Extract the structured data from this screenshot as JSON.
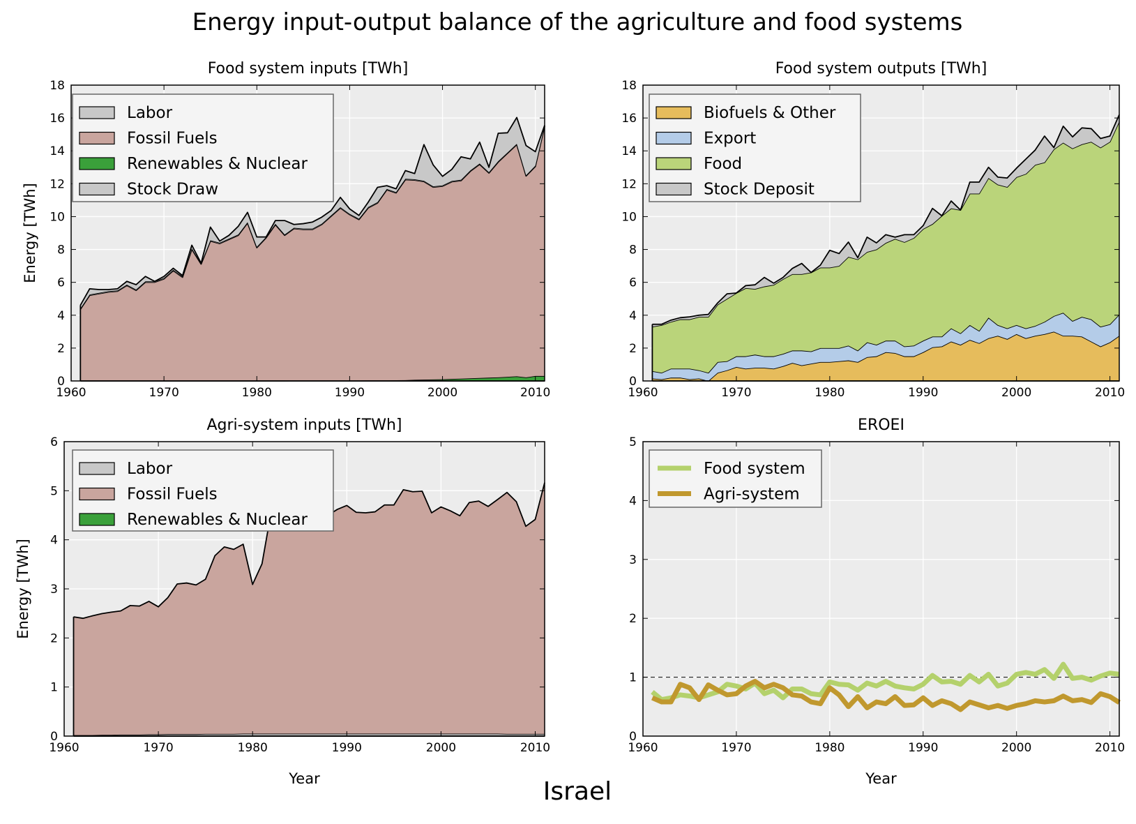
{
  "figure": {
    "title": "Energy input-output balance of the agriculture and food systems",
    "country": "Israel"
  },
  "chart_data": [
    {
      "id": "food-inputs",
      "type": "area",
      "title": "Food system inputs [TWh]",
      "ylabel": "Energy [TWh]",
      "xlabel": "",
      "xlim": [
        1960,
        2011
      ],
      "ylim": [
        0,
        18
      ],
      "xticks": [
        1960,
        1970,
        1980,
        1990,
        2000,
        2010
      ],
      "yticks": [
        0,
        2,
        4,
        6,
        8,
        10,
        12,
        14,
        16,
        18
      ],
      "grid": true,
      "legend_position": "upper-left",
      "x": [
        1961,
        1962,
        1963,
        1964,
        1965,
        1966,
        1967,
        1968,
        1969,
        1970,
        1971,
        1972,
        1973,
        1974,
        1975,
        1976,
        1977,
        1978,
        1979,
        1980,
        1981,
        1982,
        1983,
        1984,
        1985,
        1986,
        1987,
        1988,
        1989,
        1990,
        1991,
        1992,
        1993,
        1994,
        1995,
        1996,
        1997,
        1998,
        1999,
        2000,
        2001,
        2002,
        2003,
        2004,
        2005,
        2006,
        2007,
        2008,
        2009,
        2010,
        2011
      ],
      "stack_order": [
        "Renewables & Nuclear",
        "Fossil Fuels",
        "Labor",
        "Stock Draw"
      ],
      "series": [
        {
          "name": "Labor",
          "color": "#c8c8c8",
          "values": [
            0.05,
            0.05,
            0.05,
            0.05,
            0.05,
            0.05,
            0.05,
            0.05,
            0.05,
            0.05,
            0.05,
            0.05,
            0.05,
            0.05,
            0.05,
            0.05,
            0.05,
            0.05,
            0.05,
            0.05,
            0.05,
            0.05,
            0.05,
            0.05,
            0.05,
            0.05,
            0.05,
            0.05,
            0.05,
            0.05,
            0.05,
            0.05,
            0.05,
            0.05,
            0.05,
            0.05,
            0.05,
            0.05,
            0.05,
            0.05,
            0.05,
            0.05,
            0.05,
            0.05,
            0.05,
            0.05,
            0.05,
            0.05,
            0.05,
            0.05,
            0.05
          ]
        },
        {
          "name": "Fossil Fuels",
          "color": "#c9a59e",
          "values": [
            4.35,
            5.2,
            5.3,
            5.4,
            5.45,
            5.8,
            5.5,
            6.0,
            6.0,
            6.2,
            6.7,
            6.3,
            8.0,
            7.1,
            8.5,
            8.35,
            8.6,
            8.85,
            9.6,
            8.1,
            8.7,
            9.5,
            8.85,
            9.25,
            9.2,
            9.2,
            9.5,
            10.0,
            10.5,
            10.1,
            9.8,
            10.5,
            10.8,
            11.6,
            11.4,
            12.2,
            12.15,
            12.05,
            11.7,
            11.75,
            12.0,
            12.05,
            12.6,
            13.0,
            12.45,
            13.1,
            13.6,
            14.1,
            12.25,
            12.75,
            15.2
          ]
        },
        {
          "name": "Renewables & Nuclear",
          "color": "#3aa03a",
          "values": [
            0.01,
            0.01,
            0.01,
            0.01,
            0.01,
            0.01,
            0.01,
            0.01,
            0.01,
            0.01,
            0.01,
            0.01,
            0.01,
            0.01,
            0.01,
            0.01,
            0.01,
            0.01,
            0.01,
            0.01,
            0.01,
            0.01,
            0.01,
            0.02,
            0.02,
            0.02,
            0.02,
            0.02,
            0.02,
            0.02,
            0.02,
            0.03,
            0.03,
            0.03,
            0.04,
            0.05,
            0.07,
            0.08,
            0.09,
            0.1,
            0.12,
            0.14,
            0.16,
            0.18,
            0.2,
            0.22,
            0.25,
            0.28,
            0.22,
            0.3,
            0.3
          ]
        },
        {
          "name": "Stock Draw",
          "color": "#c8c8c8",
          "values": [
            0.2,
            0.35,
            0.2,
            0.1,
            0.1,
            0.2,
            0.3,
            0.3,
            0.0,
            0.1,
            0.1,
            0.05,
            0.2,
            0.0,
            0.8,
            0.1,
            0.2,
            0.5,
            0.6,
            0.6,
            0.0,
            0.2,
            0.85,
            0.2,
            0.3,
            0.4,
            0.4,
            0.3,
            0.6,
            0.3,
            0.2,
            0.3,
            0.9,
            0.2,
            0.2,
            0.5,
            0.35,
            2.2,
            1.3,
            0.55,
            0.7,
            1.4,
            0.7,
            1.3,
            0.3,
            1.7,
            1.2,
            1.6,
            1.8,
            0.85,
            0.0
          ]
        }
      ]
    },
    {
      "id": "food-outputs",
      "type": "area",
      "title": "Food system outputs [TWh]",
      "ylabel": "",
      "xlabel": "",
      "xlim": [
        1960,
        2011
      ],
      "ylim": [
        0,
        18
      ],
      "xticks": [
        1960,
        1970,
        1980,
        1990,
        2000,
        2010
      ],
      "yticks": [
        0,
        2,
        4,
        6,
        8,
        10,
        12,
        14,
        16,
        18
      ],
      "grid": true,
      "legend_position": "upper-left",
      "x": [
        1961,
        1962,
        1963,
        1964,
        1965,
        1966,
        1967,
        1968,
        1969,
        1970,
        1971,
        1972,
        1973,
        1974,
        1975,
        1976,
        1977,
        1978,
        1979,
        1980,
        1981,
        1982,
        1983,
        1984,
        1985,
        1986,
        1987,
        1988,
        1989,
        1990,
        1991,
        1992,
        1993,
        1994,
        1995,
        1996,
        1997,
        1998,
        1999,
        2000,
        2001,
        2002,
        2003,
        2004,
        2005,
        2006,
        2007,
        2008,
        2009,
        2010,
        2011
      ],
      "stack_order": [
        "Biofuels & Other",
        "Export",
        "Food",
        "Stock Deposit"
      ],
      "series": [
        {
          "name": "Biofuels & Other",
          "color": "#e6bc5c",
          "values": [
            0.15,
            0.1,
            0.2,
            0.2,
            0.1,
            0.15,
            0.0,
            0.5,
            0.65,
            0.85,
            0.75,
            0.8,
            0.8,
            0.75,
            0.9,
            1.1,
            0.95,
            1.05,
            1.15,
            1.15,
            1.2,
            1.25,
            1.15,
            1.45,
            1.5,
            1.75,
            1.7,
            1.5,
            1.5,
            1.75,
            2.05,
            2.1,
            2.4,
            2.2,
            2.5,
            2.3,
            2.6,
            2.75,
            2.55,
            2.85,
            2.6,
            2.75,
            2.85,
            3.0,
            2.75,
            2.75,
            2.7,
            2.4,
            2.1,
            2.35,
            2.75
          ]
        },
        {
          "name": "Export",
          "color": "#b4cce8",
          "values": [
            0.45,
            0.4,
            0.55,
            0.55,
            0.65,
            0.5,
            0.5,
            0.65,
            0.55,
            0.65,
            0.75,
            0.8,
            0.7,
            0.75,
            0.75,
            0.75,
            0.9,
            0.75,
            0.85,
            0.85,
            0.8,
            0.9,
            0.7,
            0.9,
            0.7,
            0.7,
            0.75,
            0.6,
            0.65,
            0.7,
            0.65,
            0.6,
            0.8,
            0.7,
            0.9,
            0.75,
            1.25,
            0.65,
            0.65,
            0.55,
            0.6,
            0.6,
            0.75,
            0.95,
            1.4,
            0.9,
            1.2,
            1.35,
            1.2,
            1.1,
            1.3
          ]
        },
        {
          "name": "Food",
          "color": "#bad47a",
          "values": [
            2.7,
            2.9,
            2.85,
            3.0,
            3.0,
            3.25,
            3.4,
            3.5,
            3.8,
            3.85,
            4.15,
            4.0,
            4.25,
            4.35,
            4.55,
            4.65,
            4.65,
            4.8,
            4.9,
            4.9,
            5.0,
            5.4,
            5.55,
            5.5,
            5.8,
            5.95,
            6.2,
            6.35,
            6.55,
            6.8,
            6.85,
            7.35,
            7.3,
            7.5,
            8.0,
            8.35,
            8.5,
            8.55,
            8.6,
            9.0,
            9.4,
            9.8,
            9.7,
            10.15,
            10.35,
            10.5,
            10.5,
            10.8,
            10.9,
            11.1,
            11.75
          ]
        },
        {
          "name": "Stock Deposit",
          "color": "#c8c8c8",
          "values": [
            0.15,
            0.05,
            0.1,
            0.1,
            0.15,
            0.1,
            0.15,
            0.1,
            0.3,
            0.0,
            0.15,
            0.25,
            0.55,
            0.1,
            0.1,
            0.35,
            0.65,
            0.0,
            0.15,
            1.05,
            0.75,
            0.9,
            0.1,
            0.9,
            0.4,
            0.5,
            0.1,
            0.45,
            0.2,
            0.2,
            0.95,
            0.0,
            0.45,
            0.0,
            0.7,
            0.7,
            0.65,
            0.45,
            0.55,
            0.55,
            0.9,
            0.9,
            1.6,
            0.1,
            1.0,
            0.7,
            1.0,
            0.8,
            0.55,
            0.35,
            0.4
          ]
        }
      ]
    },
    {
      "id": "agri-inputs",
      "type": "area",
      "title": "Agri-system inputs [TWh]",
      "ylabel": "Energy [TWh]",
      "xlabel": "Year",
      "xlim": [
        1960,
        2011
      ],
      "ylim": [
        0,
        6
      ],
      "xticks": [
        1960,
        1970,
        1980,
        1990,
        2000,
        2010
      ],
      "yticks": [
        0,
        1,
        2,
        3,
        4,
        5,
        6
      ],
      "grid": true,
      "legend_position": "upper-left",
      "x": [
        1961,
        1962,
        1963,
        1964,
        1965,
        1966,
        1967,
        1968,
        1969,
        1970,
        1971,
        1972,
        1973,
        1974,
        1975,
        1976,
        1977,
        1978,
        1979,
        1980,
        1981,
        1982,
        1983,
        1984,
        1985,
        1986,
        1987,
        1988,
        1989,
        1990,
        1991,
        1992,
        1993,
        1994,
        1995,
        1996,
        1997,
        1998,
        1999,
        2000,
        2001,
        2002,
        2003,
        2004,
        2005,
        2006,
        2007,
        2008,
        2009,
        2010,
        2011
      ],
      "stack_order": [
        "Renewables & Nuclear",
        "Labor",
        "Fossil Fuels"
      ],
      "series": [
        {
          "name": "Labor",
          "color": "#c8c8c8",
          "values": [
            0.02,
            0.02,
            0.02,
            0.025,
            0.025,
            0.03,
            0.03,
            0.03,
            0.035,
            0.035,
            0.04,
            0.04,
            0.04,
            0.04,
            0.045,
            0.045,
            0.045,
            0.045,
            0.05,
            0.05,
            0.05,
            0.05,
            0.05,
            0.05,
            0.05,
            0.05,
            0.05,
            0.05,
            0.05,
            0.05,
            0.05,
            0.05,
            0.05,
            0.05,
            0.05,
            0.05,
            0.05,
            0.05,
            0.05,
            0.05,
            0.05,
            0.05,
            0.05,
            0.05,
            0.05,
            0.05,
            0.045,
            0.045,
            0.045,
            0.045,
            0.045
          ]
        },
        {
          "name": "Fossil Fuels",
          "color": "#c9a59e",
          "values": [
            2.41,
            2.38,
            2.43,
            2.47,
            2.5,
            2.52,
            2.63,
            2.62,
            2.71,
            2.6,
            2.78,
            3.06,
            3.08,
            3.04,
            3.15,
            3.63,
            3.81,
            3.76,
            3.86,
            3.04,
            3.46,
            4.55,
            4.55,
            4.53,
            4.6,
            4.4,
            4.43,
            4.45,
            4.57,
            4.65,
            4.51,
            4.5,
            4.52,
            4.66,
            4.66,
            4.97,
            4.93,
            4.94,
            4.5,
            4.62,
            4.54,
            4.44,
            4.71,
            4.74,
            4.63,
            4.77,
            4.92,
            4.73,
            4.23,
            4.37,
            5.12
          ]
        },
        {
          "name": "Renewables & Nuclear",
          "color": "#3aa03a",
          "values": [
            0.0,
            0.0,
            0.0,
            0.0,
            0.0,
            0.0,
            0.0,
            0.0,
            0.0,
            0.0,
            0.0,
            0.0,
            0.0,
            0.0,
            0.0,
            0.0,
            0.0,
            0.0,
            0.0,
            0.0,
            0.0,
            0.0,
            0.0,
            0.0,
            0.0,
            0.0,
            0.0,
            0.0,
            0.0,
            0.0,
            0.0,
            0.0,
            0.0,
            0.0,
            0.0,
            0.0,
            0.0,
            0.0,
            0.0,
            0.0,
            0.0,
            0.0,
            0.0,
            0.0,
            0.0,
            0.0,
            0.0,
            0.0,
            0.0,
            0.0,
            0.0
          ]
        }
      ]
    },
    {
      "id": "eroei",
      "type": "line",
      "title": "EROEI",
      "ylabel": "",
      "xlabel": "Year",
      "xlim": [
        1960,
        2011
      ],
      "ylim": [
        0,
        5
      ],
      "xticks": [
        1960,
        1970,
        1980,
        1990,
        2000,
        2010
      ],
      "yticks": [
        0,
        1,
        2,
        3,
        4,
        5
      ],
      "grid": true,
      "legend_position": "upper-left",
      "reference_line": 1,
      "x": [
        1961,
        1962,
        1963,
        1964,
        1965,
        1966,
        1967,
        1968,
        1969,
        1970,
        1971,
        1972,
        1973,
        1974,
        1975,
        1976,
        1977,
        1978,
        1979,
        1980,
        1981,
        1982,
        1983,
        1984,
        1985,
        1986,
        1987,
        1988,
        1989,
        1990,
        1991,
        1992,
        1993,
        1994,
        1995,
        1996,
        1997,
        1998,
        1999,
        2000,
        2001,
        2002,
        2003,
        2004,
        2005,
        2006,
        2007,
        2008,
        2009,
        2010,
        2011
      ],
      "series": [
        {
          "name": "Food system",
          "color": "#b4d16c",
          "values": [
            0.75,
            0.62,
            0.65,
            0.7,
            0.68,
            0.65,
            0.7,
            0.75,
            0.88,
            0.85,
            0.8,
            0.9,
            0.72,
            0.78,
            0.65,
            0.8,
            0.8,
            0.72,
            0.7,
            0.92,
            0.88,
            0.87,
            0.78,
            0.9,
            0.85,
            0.93,
            0.85,
            0.82,
            0.8,
            0.88,
            1.03,
            0.92,
            0.93,
            0.88,
            1.03,
            0.92,
            1.05,
            0.85,
            0.9,
            1.05,
            1.08,
            1.05,
            1.13,
            0.98,
            1.22,
            0.98,
            1.0,
            0.95,
            1.02,
            1.07,
            1.05
          ]
        },
        {
          "name": "Agri-system",
          "color": "#c0982e",
          "values": [
            0.65,
            0.58,
            0.58,
            0.88,
            0.82,
            0.62,
            0.87,
            0.78,
            0.7,
            0.72,
            0.85,
            0.93,
            0.82,
            0.88,
            0.82,
            0.7,
            0.68,
            0.58,
            0.55,
            0.82,
            0.7,
            0.5,
            0.67,
            0.48,
            0.58,
            0.55,
            0.67,
            0.52,
            0.53,
            0.65,
            0.52,
            0.6,
            0.55,
            0.45,
            0.58,
            0.53,
            0.48,
            0.52,
            0.47,
            0.52,
            0.55,
            0.6,
            0.58,
            0.6,
            0.68,
            0.6,
            0.62,
            0.57,
            0.72,
            0.67,
            0.57
          ]
        }
      ]
    }
  ]
}
